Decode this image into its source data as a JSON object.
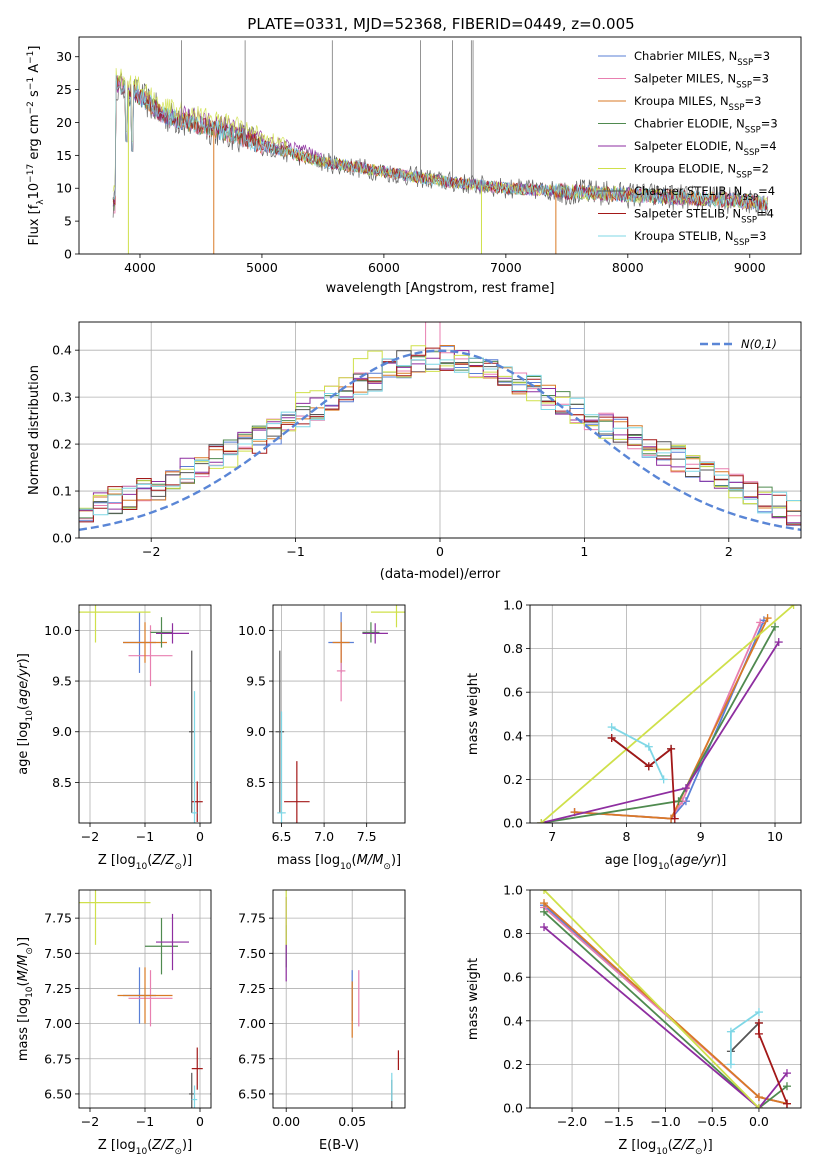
{
  "title": "PLATE=0331, MJD=52368, FIBERID=0449, z=0.005",
  "series_styles": [
    {
      "name": "Chabrier MILES, N_SSP=3",
      "color": "#5a7fd6"
    },
    {
      "name": "Salpeter MILES, N_SSP=3",
      "color": "#e87fb0"
    },
    {
      "name": "Kroupa MILES, N_SSP=3",
      "color": "#d97a26"
    },
    {
      "name": "Chabrier ELODIE, N_SSP=3",
      "color": "#4f8a4f"
    },
    {
      "name": "Salpeter ELODIE, N_SSP=4",
      "color": "#8e2ea0"
    },
    {
      "name": "Kroupa ELODIE, N_SSP=2",
      "color": "#cfe04a"
    },
    {
      "name": "Chabrier STELIB, N_SSP=4",
      "color": "#555555"
    },
    {
      "name": "Salpeter STELIB, N_SSP=4",
      "color": "#a31818"
    },
    {
      "name": "Kroupa STELIB, N_SSP=3",
      "color": "#7fd7e6"
    }
  ],
  "legend_labels": [
    [
      "Chabrier MILES, N",
      "SSP",
      "=3"
    ],
    [
      "Salpeter MILES, N",
      "SSP",
      "=3"
    ],
    [
      "Kroupa MILES, N",
      "SSP",
      "=3"
    ],
    [
      "Chabrier ELODIE, N",
      "SSP",
      "=3"
    ],
    [
      "Salpeter ELODIE, N",
      "SSP",
      "=4"
    ],
    [
      "Kroupa ELODIE, N",
      "SSP",
      "=2"
    ],
    [
      "Chabrier STELIB, N",
      "SSP",
      "=4"
    ],
    [
      "Salpeter STELIB, N",
      "SSP",
      "=4"
    ],
    [
      "Kroupa STELIB, N",
      "SSP",
      "=3"
    ]
  ],
  "chart_data": [
    {
      "id": "spectrum",
      "type": "line",
      "xlabel": "wavelength [Angstrom, rest frame]",
      "ylabel": "Flux [f_λ 10^-17 erg cm^-2 s^-1 A^-1]",
      "xlim": [
        3500,
        9420
      ],
      "ylim": [
        0,
        33
      ],
      "xticks": [
        4000,
        5000,
        6000,
        7000,
        8000,
        9000
      ],
      "yticks": [
        0,
        5,
        10,
        15,
        20,
        25,
        30
      ],
      "legend_placement": "upper right",
      "data_points": {
        "x": [
          3800,
          4000,
          4200,
          4500,
          4800,
          5000,
          5500,
          6000,
          6500,
          7000,
          7500,
          8000,
          8500,
          9000,
          9150
        ],
        "y": [
          26,
          24,
          21,
          19.5,
          18,
          16.5,
          14,
          12.5,
          11,
          10,
          9.5,
          9,
          8.5,
          8,
          7.6
        ]
      },
      "dips": [
        {
          "x": 3905,
          "y": 0
        },
        {
          "x": 4605,
          "y": 0
        },
        {
          "x": 6800,
          "y": 0
        },
        {
          "x": 7410,
          "y": 0
        }
      ]
    },
    {
      "id": "residuals",
      "type": "histogram",
      "xlabel": "(data-model)/error",
      "ylabel": "Normed distribution",
      "xlim": [
        -2.5,
        2.5
      ],
      "ylim": [
        0,
        0.46
      ],
      "xticks": [
        -2,
        -1,
        0,
        1,
        2
      ],
      "yticks": [
        0.0,
        0.1,
        0.2,
        0.3,
        0.4
      ],
      "legend_label": "N(0,1)",
      "gaussian": {
        "mean": 0,
        "sigma": 1,
        "color": "#5a86d6"
      },
      "bin_width": 0.1,
      "base_histogram": [
        0.06,
        0.07,
        0.08,
        0.09,
        0.1,
        0.11,
        0.12,
        0.14,
        0.15,
        0.17,
        0.18,
        0.2,
        0.21,
        0.23,
        0.25,
        0.26,
        0.28,
        0.3,
        0.32,
        0.33,
        0.34,
        0.36,
        0.37,
        0.38,
        0.38,
        0.38,
        0.37,
        0.36,
        0.35,
        0.34,
        0.33,
        0.32,
        0.3,
        0.29,
        0.27,
        0.26,
        0.24,
        0.23,
        0.21,
        0.2,
        0.18,
        0.17,
        0.15,
        0.14,
        0.12,
        0.11,
        0.09,
        0.08,
        0.07,
        0.05
      ]
    },
    {
      "id": "age-vs-Z",
      "type": "errorbar",
      "xlabel": "Z [log10(Z/Z⊙)]",
      "ylabel": "age [log10(age/yr)]",
      "xlim": [
        -2.2,
        0.2
      ],
      "ylim": [
        8.1,
        10.25
      ],
      "xticks": [
        -2,
        -1,
        0
      ],
      "yticks": [
        8.5,
        9.0,
        9.5,
        10.0
      ],
      "points": [
        {
          "s": 0,
          "x": -1.1,
          "y": 9.88,
          "xe": 0.3,
          "ye": 0.3
        },
        {
          "s": 1,
          "x": -0.9,
          "y": 9.75,
          "xe": 0.4,
          "ye": 0.3
        },
        {
          "s": 2,
          "x": -1.0,
          "y": 9.88,
          "xe": 0.4,
          "ye": 0.2
        },
        {
          "s": 3,
          "x": -0.7,
          "y": 9.98,
          "xe": 0.2,
          "ye": 0.15
        },
        {
          "s": 4,
          "x": -0.5,
          "y": 9.97,
          "xe": 0.3,
          "ye": 0.1
        },
        {
          "s": 5,
          "x": -1.9,
          "y": 10.18,
          "xe": 1.0,
          "ye": 0.3
        },
        {
          "s": 6,
          "x": -0.15,
          "y": 9.0,
          "xe": 0.05,
          "ye": 0.8
        },
        {
          "s": 7,
          "x": -0.05,
          "y": 8.31,
          "xe": 0.1,
          "ye": 0.2
        },
        {
          "s": 8,
          "x": -0.1,
          "y": 8.2,
          "xe": 0.05,
          "ye": 1.2
        }
      ]
    },
    {
      "id": "age-vs-mass",
      "type": "errorbar",
      "xlabel": "mass [log10(M/M⊙)]",
      "xlim": [
        6.4,
        7.95
      ],
      "ylim": [
        8.1,
        10.25
      ],
      "xticks": [
        6.5,
        7.0,
        7.5
      ],
      "yticks": [
        8.5,
        9.0,
        9.5,
        10.0
      ],
      "points": [
        {
          "s": 0,
          "x": 7.2,
          "y": 9.88,
          "xe": 0.15,
          "ye": 0.3
        },
        {
          "s": 1,
          "x": 7.2,
          "y": 9.6,
          "xe": 0.05,
          "ye": 0.3
        },
        {
          "s": 2,
          "x": 7.2,
          "y": 9.88,
          "xe": 0.1,
          "ye": 0.2
        },
        {
          "s": 3,
          "x": 7.55,
          "y": 9.98,
          "xe": 0.1,
          "ye": 0.1
        },
        {
          "s": 4,
          "x": 7.6,
          "y": 9.97,
          "xe": 0.15,
          "ye": 0.1
        },
        {
          "s": 5,
          "x": 7.85,
          "y": 10.18,
          "xe": 0.3,
          "ye": 0.15
        },
        {
          "s": 6,
          "x": 6.48,
          "y": 9.0,
          "xe": 0.05,
          "ye": 0.8
        },
        {
          "s": 7,
          "x": 6.68,
          "y": 8.31,
          "xe": 0.15,
          "ye": 0.4
        },
        {
          "s": 8,
          "x": 6.5,
          "y": 8.2,
          "xe": 0.05,
          "ye": 1.0
        }
      ]
    },
    {
      "id": "weight-vs-age",
      "type": "line",
      "xlabel": "age [log10(age/yr)]",
      "ylabel": "mass weight",
      "xlim": [
        6.7,
        10.35
      ],
      "ylim": [
        0,
        1.0
      ],
      "xticks": [
        7,
        8,
        9,
        10
      ],
      "yticks": [
        0.0,
        0.2,
        0.4,
        0.6,
        0.8,
        1.0
      ],
      "series": [
        {
          "s": 0,
          "x": [
            7.3,
            8.6,
            8.8,
            9.85
          ],
          "y": [
            0.05,
            0.02,
            0.1,
            0.93
          ]
        },
        {
          "s": 1,
          "x": [
            7.3,
            8.6,
            8.75,
            9.8
          ],
          "y": [
            0.05,
            0.02,
            0.1,
            0.92
          ]
        },
        {
          "s": 2,
          "x": [
            7.3,
            8.6,
            9.9
          ],
          "y": [
            0.05,
            0.02,
            0.94
          ]
        },
        {
          "s": 3,
          "x": [
            6.85,
            8.7,
            10.0
          ],
          "y": [
            0.0,
            0.1,
            0.9
          ]
        },
        {
          "s": 4,
          "x": [
            6.85,
            8.8,
            10.05
          ],
          "y": [
            0.0,
            0.16,
            0.83
          ]
        },
        {
          "s": 5,
          "x": [
            6.85,
            10.25
          ],
          "y": [
            0.0,
            1.0
          ]
        },
        {
          "s": 6,
          "x": [
            7.8,
            8.3,
            8.6
          ],
          "y": [
            0.39,
            0.26,
            0.34
          ]
        },
        {
          "s": 7,
          "x": [
            7.8,
            8.3,
            8.6,
            8.65
          ],
          "y": [
            0.39,
            0.26,
            0.34,
            0.02
          ]
        },
        {
          "s": 8,
          "x": [
            7.8,
            8.3,
            8.5
          ],
          "y": [
            0.44,
            0.35,
            0.2
          ]
        }
      ]
    },
    {
      "id": "mass-vs-Z",
      "type": "errorbar",
      "xlabel": "Z [log10(Z/Z⊙)]",
      "ylabel": "mass [log10(M/M⊙)]",
      "xlim": [
        -2.2,
        0.2
      ],
      "ylim": [
        6.4,
        7.95
      ],
      "xticks": [
        -2,
        -1,
        0
      ],
      "yticks": [
        6.5,
        6.75,
        7.0,
        7.25,
        7.5,
        7.75
      ],
      "points": [
        {
          "s": 0,
          "x": -1.1,
          "y": 7.2,
          "xe": 0.3,
          "ye": 0.2
        },
        {
          "s": 1,
          "x": -0.9,
          "y": 7.18,
          "xe": 0.4,
          "ye": 0.2
        },
        {
          "s": 2,
          "x": -1.0,
          "y": 7.2,
          "xe": 0.5,
          "ye": 0.2
        },
        {
          "s": 3,
          "x": -0.7,
          "y": 7.55,
          "xe": 0.3,
          "ye": 0.2
        },
        {
          "s": 4,
          "x": -0.5,
          "y": 7.58,
          "xe": 0.3,
          "ye": 0.2
        },
        {
          "s": 5,
          "x": -1.9,
          "y": 7.86,
          "xe": 1.0,
          "ye": 0.3
        },
        {
          "s": 6,
          "x": -0.15,
          "y": 6.5,
          "xe": 0.05,
          "ye": 0.15
        },
        {
          "s": 7,
          "x": -0.05,
          "y": 6.68,
          "xe": 0.1,
          "ye": 0.15
        },
        {
          "s": 8,
          "x": -0.1,
          "y": 6.46,
          "xe": 0.05,
          "ye": 0.1
        }
      ]
    },
    {
      "id": "mass-vs-ebv",
      "type": "errorbar",
      "xlabel": "E(B-V)",
      "xlim": [
        -0.01,
        0.09
      ],
      "ylim": [
        6.4,
        7.95
      ],
      "xticks": [
        0.0,
        0.05
      ],
      "yticks": [
        6.5,
        6.75,
        7.0,
        7.25,
        7.5,
        7.75
      ],
      "points": [
        {
          "s": 0,
          "x": 0.05,
          "y": 7.2,
          "xe": 0.0,
          "ye": 0.18
        },
        {
          "s": 1,
          "x": 0.055,
          "y": 7.18,
          "xe": 0.0,
          "ye": 0.2
        },
        {
          "s": 2,
          "x": 0.05,
          "y": 7.1,
          "xe": 0.0,
          "ye": 0.2
        },
        {
          "s": 3,
          "x": 0.0,
          "y": 7.55,
          "xe": 0.0,
          "ye": 0.15
        },
        {
          "s": 4,
          "x": 0.0,
          "y": 7.6,
          "xe": 0.0,
          "ye": 0.3
        },
        {
          "s": 5,
          "x": 0.0,
          "y": 7.86,
          "xe": 0.0,
          "ye": 0.3
        },
        {
          "s": 6,
          "x": 0.08,
          "y": 6.5,
          "xe": 0.0,
          "ye": 0.1
        },
        {
          "s": 7,
          "x": 0.085,
          "y": 6.74,
          "xe": 0.0,
          "ye": 0.07
        },
        {
          "s": 8,
          "x": 0.08,
          "y": 6.55,
          "xe": 0.0,
          "ye": 0.1
        }
      ]
    },
    {
      "id": "weight-vs-Z",
      "type": "line",
      "xlabel": "Z [log10(Z/Z⊙)]",
      "ylabel": "mass weight",
      "xlim": [
        -2.45,
        0.45
      ],
      "ylim": [
        0,
        1.0
      ],
      "xticks": [
        -2.0,
        -1.5,
        -1.0,
        -0.5,
        0.0
      ],
      "yticks": [
        0.0,
        0.2,
        0.4,
        0.6,
        0.8,
        1.0
      ],
      "series": [
        {
          "s": 0,
          "x": [
            -2.3,
            0.0,
            0.3
          ],
          "y": [
            0.93,
            0.05,
            0.02
          ]
        },
        {
          "s": 1,
          "x": [
            -2.3,
            0.0,
            0.3
          ],
          "y": [
            0.92,
            0.05,
            0.02
          ]
        },
        {
          "s": 2,
          "x": [
            -2.3,
            0.0,
            0.3
          ],
          "y": [
            0.94,
            0.05,
            0.02
          ]
        },
        {
          "s": 3,
          "x": [
            -2.3,
            0.0,
            0.3
          ],
          "y": [
            0.9,
            0.0,
            0.1
          ]
        },
        {
          "s": 4,
          "x": [
            -2.3,
            0.0,
            0.3
          ],
          "y": [
            0.83,
            0.0,
            0.16
          ]
        },
        {
          "s": 5,
          "x": [
            -2.3,
            0.0
          ],
          "y": [
            1.0,
            0.0
          ]
        },
        {
          "s": 6,
          "x": [
            -0.3,
            0.0
          ],
          "y": [
            0.26,
            0.39
          ]
        },
        {
          "s": 7,
          "x": [
            0.0,
            0.0,
            0.3
          ],
          "y": [
            0.39,
            0.34,
            0.02
          ]
        },
        {
          "s": 8,
          "x": [
            -0.3,
            -0.3,
            0.0
          ],
          "y": [
            0.2,
            0.35,
            0.44
          ]
        }
      ]
    }
  ]
}
